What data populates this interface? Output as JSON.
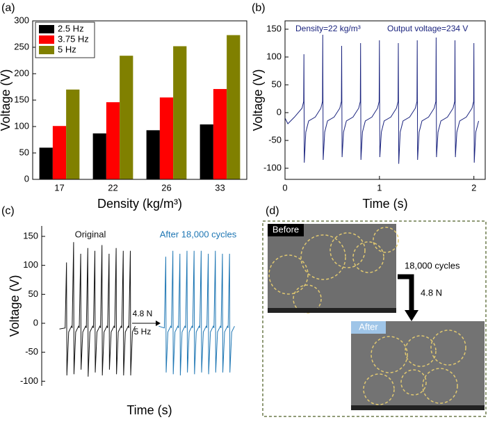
{
  "chart_data": [
    {
      "type": "bar",
      "xlabel": "Density (kg/m³)",
      "ylabel": "Voltage (V)",
      "categories": [
        "17",
        "22",
        "26",
        "33"
      ],
      "series": [
        {
          "name": "2.5 Hz",
          "color": "#000000",
          "values": [
            60,
            87,
            93,
            104
          ]
        },
        {
          "name": "3.75 Hz",
          "color": "#ff0000",
          "values": [
            101,
            146,
            155,
            171
          ]
        },
        {
          "name": "5 Hz",
          "color": "#808000",
          "values": [
            170,
            234,
            252,
            273
          ]
        }
      ],
      "ylim": [
        0,
        300
      ],
      "yticks": [
        0,
        50,
        100,
        150,
        200,
        250,
        300
      ],
      "legend": "upper left"
    },
    {
      "type": "line",
      "xlabel": "Time (s)",
      "ylabel": "Voltage (V)",
      "annotations": [
        "Density=22 kg/m³",
        "Output voltage=234 V"
      ],
      "xlim": [
        0,
        2.12
      ],
      "xticks": [
        0,
        1,
        2
      ],
      "ylim": [
        -120,
        165
      ],
      "yticks": [
        -100,
        -50,
        0,
        50,
        100,
        150
      ],
      "series": [
        {
          "color": "#1a237e",
          "x": [
            0,
            0.03,
            0.1,
            0.18,
            0.197,
            0.2,
            0.204,
            0.22,
            0.25,
            0.32,
            0.38,
            0.397,
            0.4,
            0.404,
            0.42,
            0.45,
            0.52,
            0.58,
            0.597,
            0.6,
            0.604,
            0.62,
            0.65,
            0.72,
            0.78,
            0.797,
            0.8,
            0.804,
            0.82,
            0.85,
            0.92,
            0.98,
            0.997,
            1.0,
            1.004,
            1.02,
            1.05,
            1.12,
            1.18,
            1.197,
            1.2,
            1.204,
            1.22,
            1.25,
            1.32,
            1.38,
            1.397,
            1.4,
            1.404,
            1.42,
            1.45,
            1.52,
            1.58,
            1.597,
            1.6,
            1.604,
            1.62,
            1.65,
            1.72,
            1.78,
            1.797,
            1.8,
            1.804,
            1.82,
            1.85,
            1.92,
            1.98,
            1.997,
            2.0,
            2.004,
            2.02,
            2.05
          ],
          "values": [
            -10,
            -20,
            -8,
            8,
            20,
            105,
            -90,
            -35,
            -15,
            -8,
            8,
            20,
            140,
            -85,
            -35,
            -15,
            -8,
            8,
            20,
            120,
            -80,
            -35,
            -15,
            -8,
            8,
            20,
            125,
            -85,
            -35,
            -15,
            -8,
            8,
            20,
            130,
            -80,
            -35,
            -15,
            -8,
            8,
            20,
            125,
            -92,
            -35,
            -15,
            -8,
            8,
            20,
            130,
            -85,
            -35,
            -15,
            -8,
            8,
            20,
            135,
            -80,
            -35,
            -15,
            -8,
            8,
            20,
            130,
            -80,
            -35,
            -15,
            -8,
            8,
            20,
            125,
            -90,
            -35,
            -15
          ]
        }
      ]
    },
    {
      "type": "line",
      "xlabel": "Time (s)",
      "ylabel": "Voltage (V)",
      "annotations": [
        "4.8 N",
        "5 Hz"
      ],
      "xlim": [
        -0.25,
        2.79
      ],
      "ylim": [
        -108,
        168
      ],
      "yticks": [
        -100,
        -50,
        0,
        50,
        100,
        150
      ],
      "series": [
        {
          "name": "Original",
          "color": "#111111",
          "x": [
            0,
            0.08,
            0.1,
            0.105,
            0.13,
            0.17,
            0.18,
            0.2,
            0.205,
            0.23,
            0.27,
            0.28,
            0.3,
            0.305,
            0.33,
            0.37,
            0.38,
            0.4,
            0.405,
            0.43,
            0.47,
            0.48,
            0.5,
            0.505,
            0.53,
            0.57,
            0.58,
            0.6,
            0.605,
            0.63,
            0.67,
            0.68,
            0.7,
            0.705,
            0.73,
            0.77,
            0.78,
            0.8,
            0.805,
            0.83,
            0.87,
            0.88,
            0.9,
            0.905,
            0.93,
            0.97,
            0.98,
            1.0,
            1.005,
            1.03,
            1.07
          ],
          "values": [
            -10,
            -8,
            105,
            -90,
            -15,
            -5,
            -8,
            140,
            -88,
            -15,
            -5,
            -8,
            120,
            -80,
            -15,
            -5,
            -8,
            130,
            -92,
            -15,
            -5,
            -8,
            125,
            -85,
            -15,
            -5,
            -8,
            135,
            -90,
            -15,
            -5,
            -8,
            120,
            -80,
            -15,
            -5,
            -8,
            130,
            -88,
            -15,
            -5,
            -8,
            125,
            -90,
            -15,
            -5,
            -8,
            125,
            -90,
            -15,
            -5
          ]
        },
        {
          "name": "After 18,000 cycles",
          "color": "#1f77b4",
          "x": [
            1.4,
            1.48,
            1.5,
            1.505,
            1.53,
            1.57,
            1.58,
            1.6,
            1.605,
            1.63,
            1.67,
            1.68,
            1.7,
            1.705,
            1.73,
            1.77,
            1.78,
            1.8,
            1.805,
            1.83,
            1.87,
            1.88,
            1.9,
            1.905,
            1.93,
            1.97,
            1.98,
            2.0,
            2.005,
            2.03,
            2.07,
            2.08,
            2.1,
            2.105,
            2.13,
            2.17,
            2.18,
            2.2,
            2.205,
            2.23,
            2.27,
            2.28,
            2.3,
            2.305,
            2.33,
            2.37,
            2.38,
            2.4,
            2.405,
            2.43,
            2.47
          ],
          "values": [
            -5,
            -8,
            115,
            -85,
            -15,
            -5,
            -8,
            125,
            -88,
            -15,
            -5,
            -8,
            120,
            -90,
            -15,
            -5,
            -8,
            125,
            -85,
            -15,
            -5,
            -8,
            125,
            -88,
            -15,
            -5,
            -8,
            125,
            -85,
            -15,
            -5,
            -8,
            120,
            -88,
            -15,
            -5,
            -8,
            125,
            -85,
            -15,
            -5,
            -8,
            120,
            -85,
            -15,
            -5,
            -8,
            120,
            -85,
            -15,
            -5
          ]
        }
      ]
    }
  ],
  "panel_labels": [
    "(a)",
    "(b)",
    "(c)",
    "(d)"
  ],
  "panel_d": {
    "before": "Before",
    "after": "After",
    "cycles": "18,000 cycles",
    "force": "4.8 N"
  }
}
